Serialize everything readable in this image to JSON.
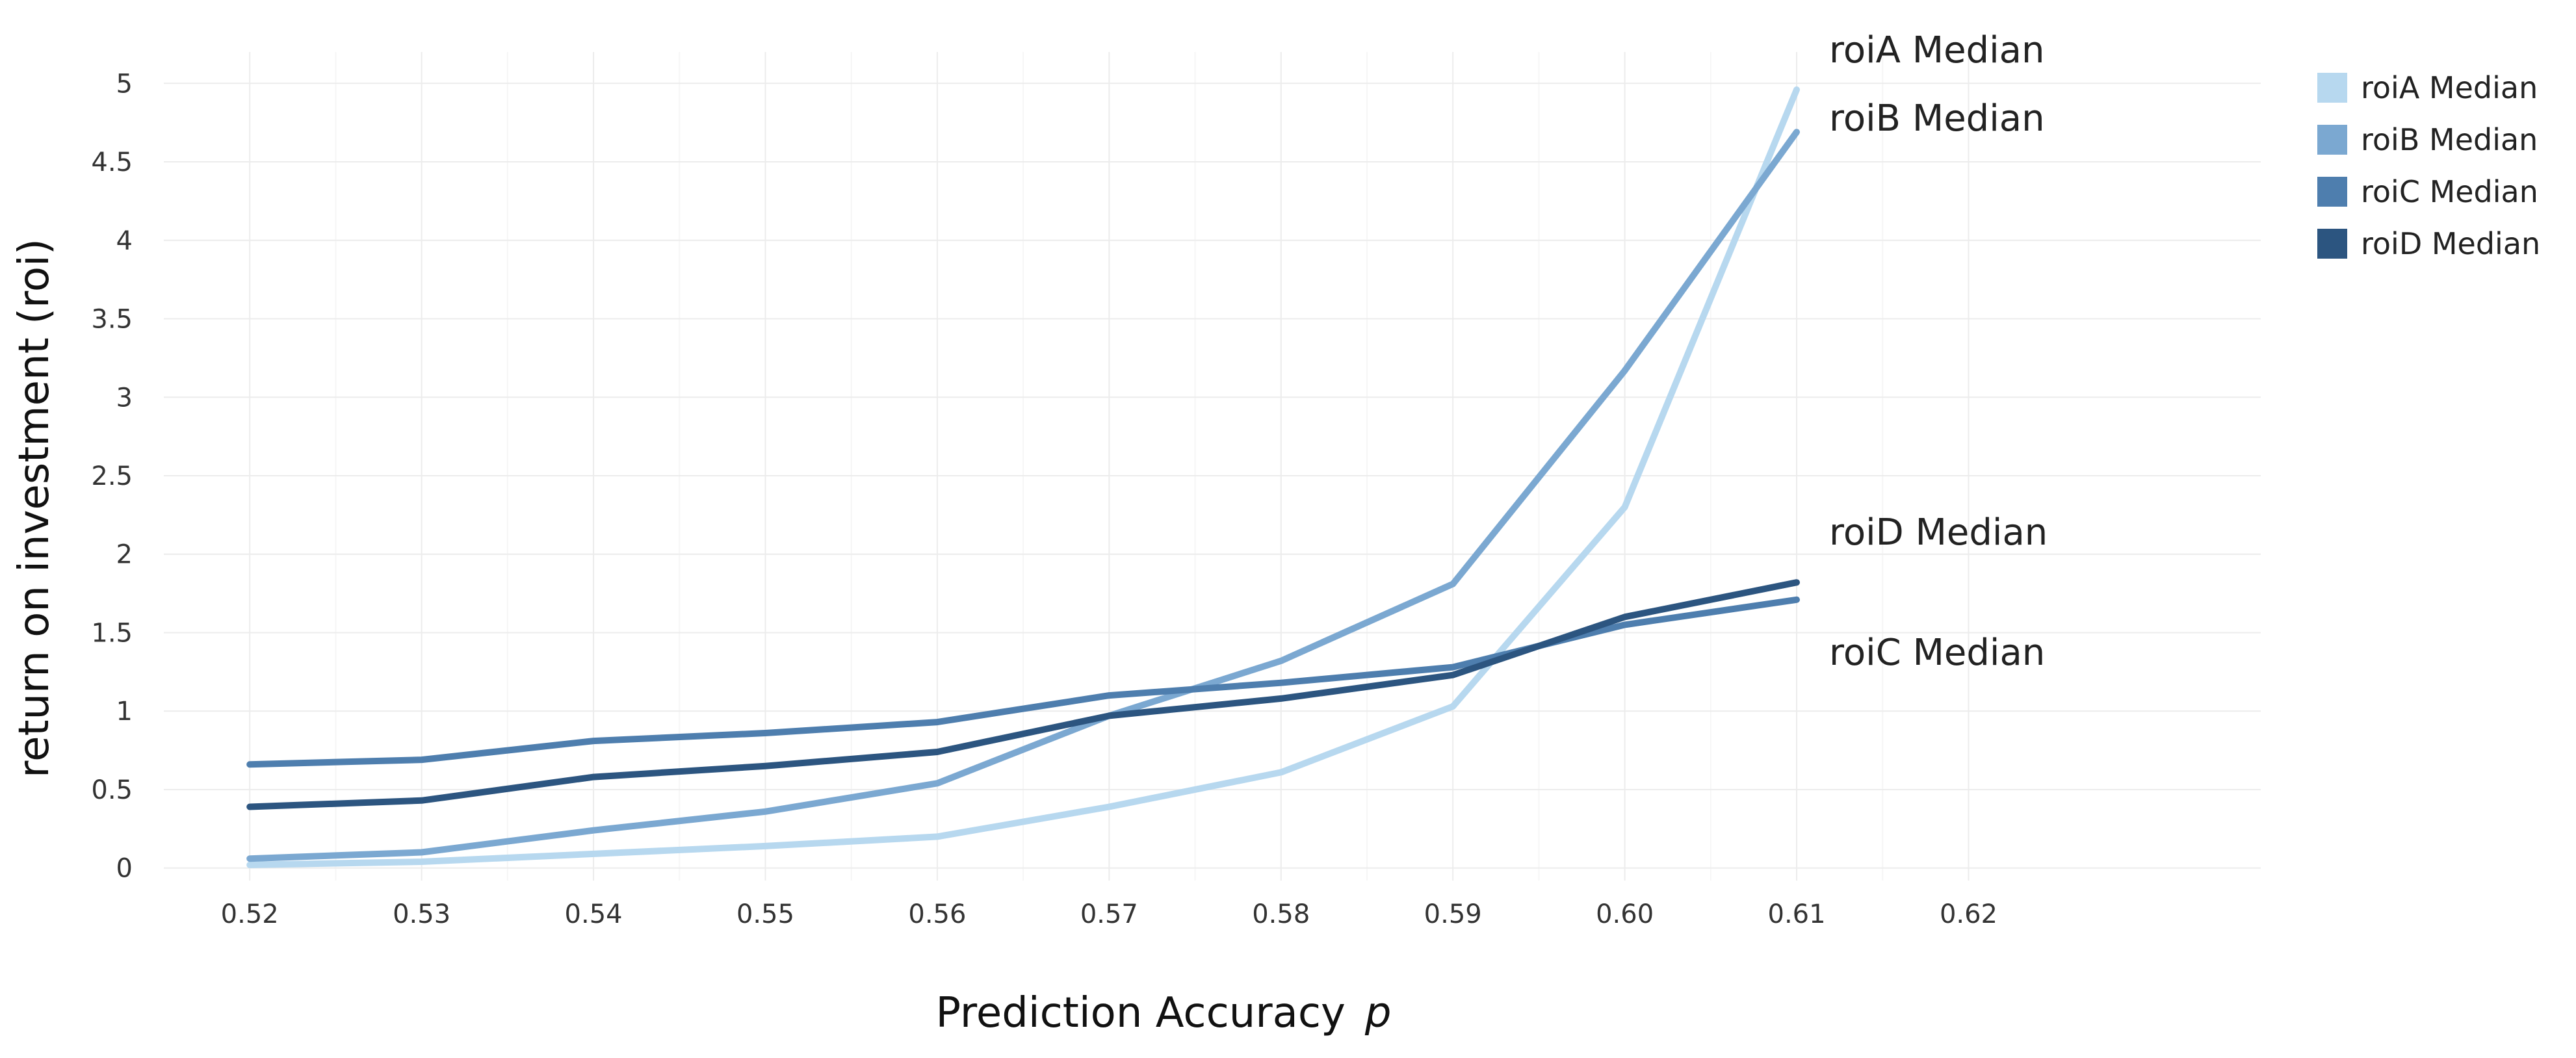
{
  "chart_data": {
    "type": "line",
    "title": "",
    "xlabel": "Prediction Accuracy",
    "xlabel_var": "p",
    "ylabel": "return on investment (roi)",
    "xlim": [
      0.515,
      0.637
    ],
    "ylim": [
      -0.08,
      5.2
    ],
    "grid": true,
    "legend_position": "right",
    "x_ticks": [
      "0.52",
      "0.53",
      "0.54",
      "0.55",
      "0.56",
      "0.57",
      "0.58",
      "0.59",
      "0.60",
      "0.61",
      "0.62"
    ],
    "y_ticks": [
      "0",
      "0.5",
      "1",
      "1.5",
      "2",
      "2.5",
      "3",
      "3.5",
      "4",
      "4.5",
      "5"
    ],
    "x": [
      0.52,
      0.53,
      0.54,
      0.55,
      0.56,
      0.57,
      0.58,
      0.59,
      0.6,
      0.61
    ],
    "series": [
      {
        "name": "roiA Median",
        "color": "#b7d8ef",
        "values": [
          0.02,
          0.04,
          0.09,
          0.14,
          0.2,
          0.39,
          0.61,
          1.03,
          2.3,
          4.96
        ]
      },
      {
        "name": "roiB Median",
        "color": "#7ba8d1",
        "values": [
          0.06,
          0.1,
          0.24,
          0.36,
          0.54,
          0.97,
          1.32,
          1.81,
          3.17,
          4.69
        ]
      },
      {
        "name": "roiC Median",
        "color": "#4e7eae",
        "values": [
          0.66,
          0.69,
          0.81,
          0.86,
          0.93,
          1.1,
          1.18,
          1.28,
          1.55,
          1.71
        ]
      },
      {
        "name": "roiD Median",
        "color": "#2c5580",
        "values": [
          0.39,
          0.43,
          0.58,
          0.65,
          0.74,
          0.97,
          1.08,
          1.23,
          1.6,
          1.82
        ]
      }
    ],
    "end_labels": [
      {
        "series": "roiA Median",
        "text": "roiA Median"
      },
      {
        "series": "roiB Median",
        "text": "roiB Median"
      },
      {
        "series": "roiD Median",
        "text": "roiD Median"
      },
      {
        "series": "roiC Median",
        "text": "roiC Median"
      }
    ]
  }
}
